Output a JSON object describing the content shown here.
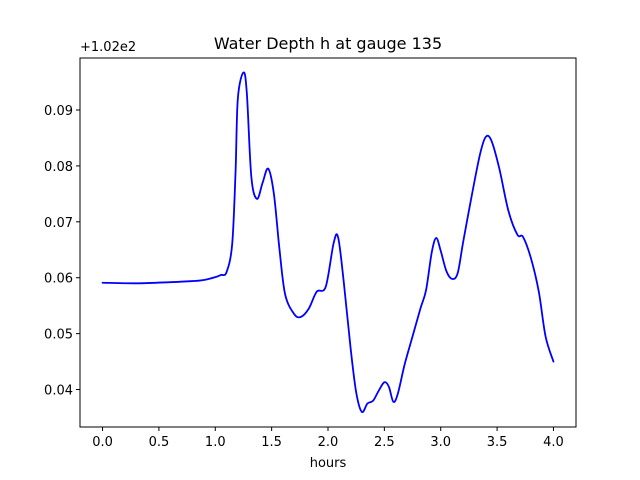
{
  "chart_data": {
    "type": "line",
    "title": "Water Depth h at gauge 135",
    "xlabel": "hours",
    "ylabel": "",
    "y_offset_label": "+1.02e2",
    "y_offset_value": 102,
    "xlim": [
      -0.2,
      4.2
    ],
    "ylim": [
      0.0333,
      0.0993
    ],
    "x_ticks": [
      0.0,
      0.5,
      1.0,
      1.5,
      2.0,
      2.5,
      3.0,
      3.5,
      4.0
    ],
    "x_tick_labels": [
      "0.0",
      "0.5",
      "1.0",
      "1.5",
      "2.0",
      "2.5",
      "3.0",
      "3.5",
      "4.0"
    ],
    "y_ticks": [
      0.04,
      0.05,
      0.06,
      0.07,
      0.08,
      0.09
    ],
    "y_tick_labels": [
      "0.04",
      "0.05",
      "0.06",
      "0.07",
      "0.08",
      "0.09"
    ],
    "grid": false,
    "line_color": "#0000ff",
    "series": [
      {
        "name": "",
        "color": "#0000ff",
        "x": [
          0.0,
          0.3,
          0.6,
          0.8,
          0.9,
          1.0,
          1.05,
          1.1,
          1.15,
          1.18,
          1.2,
          1.25,
          1.28,
          1.32,
          1.37,
          1.42,
          1.47,
          1.52,
          1.57,
          1.62,
          1.7,
          1.76,
          1.83,
          1.9,
          1.98,
          2.05,
          2.09,
          2.14,
          2.2,
          2.25,
          2.3,
          2.35,
          2.4,
          2.45,
          2.5,
          2.54,
          2.58,
          2.62,
          2.68,
          2.75,
          2.82,
          2.87,
          2.92,
          2.96,
          3.0,
          3.05,
          3.1,
          3.15,
          3.2,
          3.28,
          3.35,
          3.4,
          3.45,
          3.52,
          3.6,
          3.68,
          3.73,
          3.8,
          3.87,
          3.93,
          4.0
        ],
        "y": [
          0.0591,
          0.059,
          0.0592,
          0.0594,
          0.0596,
          0.0601,
          0.0605,
          0.061,
          0.066,
          0.079,
          0.092,
          0.0967,
          0.093,
          0.078,
          0.0741,
          0.077,
          0.0795,
          0.075,
          0.065,
          0.057,
          0.0535,
          0.053,
          0.0545,
          0.0575,
          0.0584,
          0.0662,
          0.0672,
          0.0592,
          0.0475,
          0.0395,
          0.036,
          0.0375,
          0.038,
          0.0398,
          0.0413,
          0.0405,
          0.0378,
          0.0393,
          0.0445,
          0.0495,
          0.0545,
          0.0578,
          0.0645,
          0.0671,
          0.0648,
          0.0612,
          0.0598,
          0.0608,
          0.0665,
          0.0752,
          0.0822,
          0.0852,
          0.0845,
          0.0795,
          0.072,
          0.0677,
          0.0673,
          0.0635,
          0.0575,
          0.0495,
          0.045
        ]
      }
    ]
  }
}
